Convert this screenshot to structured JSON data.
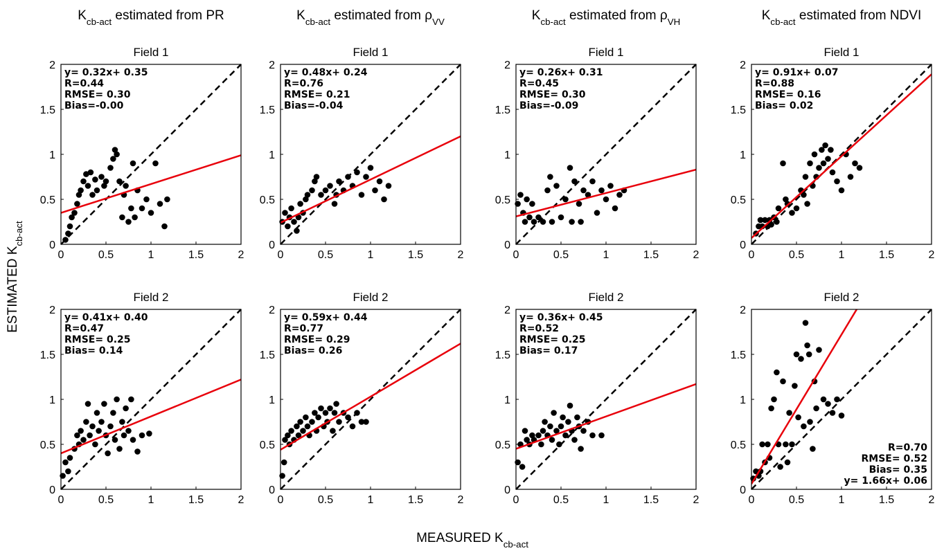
{
  "figure": {
    "column_titles": [
      [
        "K",
        "cb-act",
        " estimated from PR"
      ],
      [
        "K",
        "cb-act",
        " estimated from ρ",
        "VV"
      ],
      [
        "K",
        "cb-act",
        " estimated from ρ",
        "VH"
      ],
      [
        "K",
        "cb-act",
        " estimated from NDVI"
      ]
    ],
    "xlabel": [
      "MEASURED K",
      "cb-act"
    ],
    "ylabel": [
      "ESTIMATED K",
      "cb-act"
    ]
  },
  "chart_data": [
    {
      "type": "scatter",
      "title": "Field 1",
      "color": "#000000",
      "x": [
        0.05,
        0.08,
        0.1,
        0.12,
        0.15,
        0.18,
        0.2,
        0.22,
        0.25,
        0.28,
        0.3,
        0.33,
        0.35,
        0.38,
        0.4,
        0.45,
        0.48,
        0.5,
        0.55,
        0.58,
        0.6,
        0.62,
        0.65,
        0.68,
        0.7,
        0.72,
        0.75,
        0.78,
        0.8,
        0.82,
        0.85,
        0.9,
        0.95,
        1.0,
        1.05,
        1.1,
        1.15,
        1.18
      ],
      "y": [
        0.05,
        0.12,
        0.2,
        0.3,
        0.35,
        0.45,
        0.55,
        0.6,
        0.7,
        0.78,
        0.65,
        0.8,
        0.55,
        0.72,
        0.6,
        0.75,
        0.65,
        0.7,
        0.85,
        0.95,
        1.05,
        1.0,
        0.7,
        0.3,
        0.55,
        0.65,
        0.25,
        0.4,
        0.9,
        0.3,
        0.6,
        0.4,
        0.5,
        0.35,
        0.9,
        0.45,
        0.2,
        0.5
      ],
      "fit": {
        "slope": 0.32,
        "intercept": 0.35,
        "color": "#e8000b"
      },
      "annotations": [
        "y= 0.32x+ 0.35",
        "R=0.44",
        "RMSE= 0.30",
        "Bias=-0.00"
      ],
      "annotation_corner": "upper left",
      "xlim": [
        0,
        2
      ],
      "ylim": [
        0,
        2
      ],
      "xticks": [
        0,
        0.5,
        1,
        1.5,
        2
      ],
      "yticks": [
        0,
        0.5,
        1,
        1.5,
        2
      ]
    },
    {
      "type": "scatter",
      "title": "Field 1",
      "color": "#000000",
      "x": [
        0.02,
        0.05,
        0.08,
        0.1,
        0.12,
        0.15,
        0.18,
        0.2,
        0.22,
        0.25,
        0.28,
        0.3,
        0.35,
        0.38,
        0.4,
        0.45,
        0.5,
        0.55,
        0.6,
        0.62,
        0.65,
        0.7,
        0.75,
        0.8,
        0.85,
        0.9,
        0.95,
        1.0,
        1.05,
        1.1,
        1.15,
        1.2
      ],
      "y": [
        0.25,
        0.35,
        0.2,
        0.3,
        0.4,
        0.25,
        0.15,
        0.3,
        0.45,
        0.35,
        0.5,
        0.55,
        0.6,
        0.7,
        0.75,
        0.55,
        0.6,
        0.65,
        0.45,
        0.55,
        0.7,
        0.6,
        0.75,
        0.65,
        0.8,
        0.55,
        0.75,
        0.85,
        0.6,
        0.7,
        0.5,
        0.65
      ],
      "fit": {
        "slope": 0.48,
        "intercept": 0.24,
        "color": "#e8000b"
      },
      "annotations": [
        "y= 0.48x+ 0.24",
        "R=0.76",
        "RMSE= 0.21",
        "Bias=-0.04"
      ],
      "annotation_corner": "upper left",
      "xlim": [
        0,
        2
      ],
      "ylim": [
        0,
        2
      ],
      "xticks": [
        0,
        0.5,
        1,
        1.5,
        2
      ],
      "yticks": [
        0,
        0.5,
        1,
        1.5,
        2
      ]
    },
    {
      "type": "scatter",
      "title": "Field 1",
      "color": "#000000",
      "x": [
        0.02,
        0.05,
        0.08,
        0.1,
        0.12,
        0.15,
        0.18,
        0.2,
        0.25,
        0.3,
        0.35,
        0.38,
        0.4,
        0.45,
        0.5,
        0.55,
        0.6,
        0.62,
        0.65,
        0.7,
        0.72,
        0.75,
        0.8,
        0.85,
        0.9,
        0.95,
        1.0,
        1.05,
        1.1,
        1.15,
        1.2
      ],
      "y": [
        0.45,
        0.55,
        0.35,
        0.25,
        0.5,
        0.3,
        0.45,
        0.25,
        0.3,
        0.25,
        0.6,
        0.75,
        0.25,
        0.65,
        0.3,
        0.5,
        0.85,
        0.25,
        0.7,
        0.45,
        0.25,
        0.6,
        0.55,
        0.7,
        0.35,
        0.6,
        0.5,
        0.65,
        0.4,
        0.55,
        0.6
      ],
      "fit": {
        "slope": 0.26,
        "intercept": 0.31,
        "color": "#e8000b"
      },
      "annotations": [
        "y= 0.26x+ 0.31",
        "R=0.45",
        "RMSE= 0.30",
        "Bias=-0.09"
      ],
      "annotation_corner": "upper left",
      "xlim": [
        0,
        2
      ],
      "ylim": [
        0,
        2
      ],
      "xticks": [
        0,
        0.5,
        1,
        1.5,
        2
      ],
      "yticks": [
        0,
        0.5,
        1,
        1.5,
        2
      ]
    },
    {
      "type": "scatter",
      "title": "Field 1",
      "color": "#000000",
      "x": [
        0.05,
        0.08,
        0.1,
        0.12,
        0.15,
        0.18,
        0.2,
        0.22,
        0.25,
        0.28,
        0.3,
        0.35,
        0.38,
        0.4,
        0.45,
        0.5,
        0.55,
        0.58,
        0.6,
        0.62,
        0.65,
        0.68,
        0.7,
        0.72,
        0.75,
        0.78,
        0.8,
        0.82,
        0.85,
        0.88,
        0.9,
        0.95,
        1.0,
        1.05,
        1.1,
        1.15,
        1.2
      ],
      "y": [
        0.12,
        0.2,
        0.27,
        0.2,
        0.27,
        0.2,
        0.27,
        0.22,
        0.3,
        0.25,
        0.4,
        0.9,
        0.5,
        0.45,
        0.35,
        0.4,
        0.6,
        0.55,
        0.75,
        0.45,
        0.9,
        0.65,
        1.0,
        0.75,
        0.85,
        1.05,
        0.9,
        1.1,
        0.95,
        1.05,
        0.8,
        0.7,
        0.6,
        1.0,
        0.75,
        0.9,
        0.85
      ],
      "fit": {
        "slope": 0.91,
        "intercept": 0.07,
        "color": "#e8000b"
      },
      "annotations": [
        "y= 0.91x+ 0.07",
        "R=0.88",
        "RMSE= 0.16",
        "Bias= 0.02"
      ],
      "annotation_corner": "upper left",
      "xlim": [
        0,
        2
      ],
      "ylim": [
        0,
        2
      ],
      "xticks": [
        0,
        0.5,
        1,
        1.5,
        2
      ],
      "yticks": [
        0,
        0.5,
        1,
        1.5,
        2
      ]
    },
    {
      "type": "scatter",
      "title": "Field 2",
      "color": "#000000",
      "x": [
        0.02,
        0.05,
        0.08,
        0.1,
        0.15,
        0.18,
        0.2,
        0.22,
        0.25,
        0.28,
        0.3,
        0.32,
        0.35,
        0.38,
        0.4,
        0.42,
        0.45,
        0.48,
        0.5,
        0.52,
        0.55,
        0.58,
        0.6,
        0.62,
        0.65,
        0.68,
        0.7,
        0.72,
        0.75,
        0.78,
        0.8,
        0.85,
        0.9,
        0.98
      ],
      "y": [
        0.15,
        0.3,
        0.2,
        0.35,
        0.45,
        0.6,
        0.5,
        0.65,
        0.55,
        0.75,
        0.95,
        0.6,
        0.7,
        0.5,
        0.85,
        0.65,
        0.75,
        0.95,
        0.6,
        0.4,
        0.7,
        0.85,
        0.55,
        1.0,
        0.45,
        0.75,
        0.6,
        0.9,
        0.65,
        1.0,
        0.55,
        0.42,
        0.6,
        0.62
      ],
      "fit": {
        "slope": 0.41,
        "intercept": 0.4,
        "color": "#e8000b"
      },
      "annotations": [
        "y= 0.41x+ 0.40",
        "R=0.47",
        "RMSE= 0.25",
        "Bias= 0.14"
      ],
      "annotation_corner": "upper left",
      "xlim": [
        0,
        2
      ],
      "ylim": [
        0,
        2
      ],
      "xticks": [
        0,
        0.5,
        1,
        1.5,
        2
      ],
      "yticks": [
        0,
        0.5,
        1,
        1.5,
        2
      ]
    },
    {
      "type": "scatter",
      "title": "Field 2",
      "color": "#000000",
      "x": [
        0.02,
        0.04,
        0.05,
        0.08,
        0.1,
        0.12,
        0.15,
        0.18,
        0.2,
        0.22,
        0.25,
        0.28,
        0.3,
        0.32,
        0.35,
        0.38,
        0.4,
        0.42,
        0.45,
        0.48,
        0.5,
        0.52,
        0.55,
        0.58,
        0.6,
        0.62,
        0.65,
        0.7,
        0.75,
        0.8,
        0.85,
        0.9,
        0.95
      ],
      "y": [
        0.15,
        0.3,
        0.55,
        0.6,
        0.5,
        0.65,
        0.55,
        0.7,
        0.6,
        0.75,
        0.65,
        0.8,
        0.7,
        0.6,
        0.75,
        0.85,
        0.65,
        0.8,
        0.9,
        0.7,
        0.85,
        0.75,
        0.9,
        0.65,
        0.85,
        0.95,
        0.75,
        0.85,
        0.8,
        0.7,
        0.85,
        0.75,
        0.75
      ],
      "fit": {
        "slope": 0.59,
        "intercept": 0.44,
        "color": "#e8000b"
      },
      "annotations": [
        "y= 0.59x+ 0.44",
        "R=0.77",
        "RMSE= 0.29",
        "Bias= 0.26"
      ],
      "annotation_corner": "upper left",
      "xlim": [
        0,
        2
      ],
      "ylim": [
        0,
        2
      ],
      "xticks": [
        0,
        0.5,
        1,
        1.5,
        2
      ],
      "yticks": [
        0,
        0.5,
        1,
        1.5,
        2
      ]
    },
    {
      "type": "scatter",
      "title": "Field 2",
      "color": "#000000",
      "x": [
        0.02,
        0.05,
        0.07,
        0.1,
        0.12,
        0.15,
        0.18,
        0.2,
        0.25,
        0.28,
        0.3,
        0.32,
        0.35,
        0.38,
        0.4,
        0.42,
        0.45,
        0.48,
        0.5,
        0.52,
        0.55,
        0.58,
        0.6,
        0.62,
        0.65,
        0.68,
        0.7,
        0.72,
        0.75,
        0.8,
        0.85,
        0.95
      ],
      "y": [
        0.3,
        0.5,
        0.25,
        0.65,
        0.55,
        0.5,
        0.6,
        0.55,
        0.6,
        0.5,
        0.65,
        0.75,
        0.6,
        0.7,
        0.55,
        0.85,
        0.65,
        0.5,
        0.7,
        0.8,
        0.6,
        0.75,
        0.93,
        0.65,
        0.55,
        0.8,
        0.7,
        0.45,
        0.65,
        0.75,
        0.6,
        0.6
      ],
      "fit": {
        "slope": 0.36,
        "intercept": 0.45,
        "color": "#e8000b"
      },
      "annotations": [
        "y= 0.36x+ 0.45",
        "R=0.52",
        "RMSE= 0.25",
        "Bias= 0.17"
      ],
      "annotation_corner": "upper left",
      "xlim": [
        0,
        2
      ],
      "ylim": [
        0,
        2
      ],
      "xticks": [
        0,
        0.5,
        1,
        1.5,
        2
      ],
      "yticks": [
        0,
        0.5,
        1,
        1.5,
        2
      ]
    },
    {
      "type": "scatter",
      "title": "Field 2",
      "color": "#000000",
      "x": [
        0.02,
        0.05,
        0.08,
        0.1,
        0.12,
        0.15,
        0.18,
        0.2,
        0.22,
        0.25,
        0.28,
        0.3,
        0.32,
        0.35,
        0.38,
        0.4,
        0.42,
        0.45,
        0.48,
        0.5,
        0.52,
        0.55,
        0.58,
        0.6,
        0.62,
        0.64,
        0.65,
        0.68,
        0.7,
        0.72,
        0.75,
        0.8,
        0.85,
        0.9,
        0.95,
        1.0
      ],
      "y": [
        0.12,
        0.2,
        0.15,
        0.2,
        0.5,
        0.3,
        0.5,
        0.35,
        0.9,
        1.0,
        1.3,
        0.5,
        0.25,
        1.2,
        0.5,
        0.3,
        0.85,
        0.5,
        1.15,
        1.5,
        0.8,
        1.45,
        0.7,
        1.85,
        1.6,
        1.5,
        0.75,
        0.45,
        1.2,
        0.9,
        1.55,
        1.0,
        0.95,
        0.85,
        1.0,
        0.82
      ],
      "fit": {
        "slope": 1.66,
        "intercept": 0.06,
        "color": "#e8000b"
      },
      "annotations": [
        "R=0.70",
        "RMSE= 0.52",
        "Bias= 0.35",
        "y= 1.66x+ 0.06"
      ],
      "annotation_corner": "lower right",
      "xlim": [
        0,
        2
      ],
      "ylim": [
        0,
        2
      ],
      "xticks": [
        0,
        0.5,
        1,
        1.5,
        2
      ],
      "yticks": [
        0,
        0.5,
        1,
        1.5,
        2
      ]
    }
  ]
}
